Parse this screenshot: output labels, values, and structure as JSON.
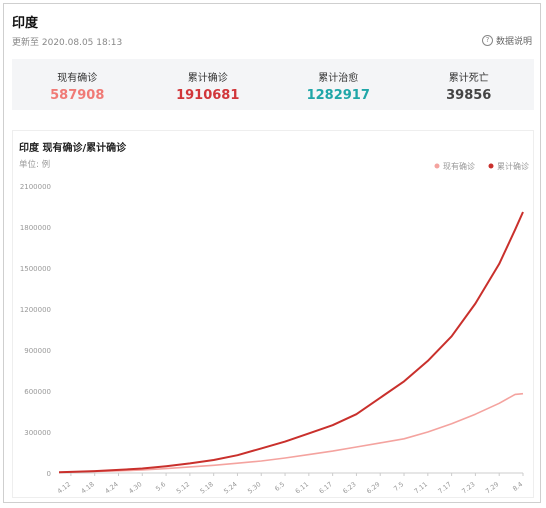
{
  "header": {
    "title": "印度",
    "updated": "更新至 2020.08.05 18:13",
    "help_label": "数据说明",
    "help_icon": "question-circle-icon"
  },
  "stats": [
    {
      "label": "现有确诊",
      "value": "587908",
      "color": "#f07a76"
    },
    {
      "label": "累计确诊",
      "value": "1910681",
      "color": "#d1363a"
    },
    {
      "label": "累计治愈",
      "value": "1282917",
      "color": "#1fa6a8"
    },
    {
      "label": "累计死亡",
      "value": "39856",
      "color": "#444444"
    }
  ],
  "chart_data": {
    "type": "line",
    "title": "印度 现有确诊/累计确诊",
    "unit_label": "单位: 例",
    "ylim": [
      0,
      2100000
    ],
    "yticks": [
      0,
      300000,
      600000,
      900000,
      1200000,
      1500000,
      1800000,
      2100000
    ],
    "ytick_labels": [
      "0",
      "300000",
      "600000",
      "900000",
      "1200000",
      "1500000",
      "1800000",
      "2100000"
    ],
    "x_tick_labels": [
      "4.12",
      "4.18",
      "4.24",
      "4.30",
      "5.6",
      "5.12",
      "5.18",
      "5.24",
      "5.30",
      "6.5",
      "6.11",
      "6.17",
      "6.23",
      "6.29",
      "7.5",
      "7.11",
      "7.17",
      "7.23",
      "7.29",
      "8.4"
    ],
    "x_range": [
      "4.9",
      "8.4"
    ],
    "legend_position": "top-right",
    "grid": false,
    "series": [
      {
        "name": "现有确诊",
        "color": "#f4a39f",
        "x": [
          "4.9",
          "4.12",
          "4.18",
          "4.24",
          "4.30",
          "5.6",
          "5.12",
          "5.18",
          "5.24",
          "5.30",
          "6.5",
          "6.11",
          "6.17",
          "6.23",
          "6.29",
          "7.5",
          "7.11",
          "7.17",
          "7.23",
          "7.29",
          "8.2",
          "8.4"
        ],
        "values": [
          5000,
          7500,
          11000,
          16000,
          22000,
          32000,
          45000,
          56000,
          72000,
          88000,
          110000,
          135000,
          160000,
          190000,
          220000,
          250000,
          300000,
          360000,
          430000,
          510000,
          575000,
          580000
        ]
      },
      {
        "name": "累计确诊",
        "color": "#c9302c",
        "x": [
          "4.9",
          "4.12",
          "4.18",
          "4.24",
          "4.30",
          "5.6",
          "5.12",
          "5.18",
          "5.24",
          "5.30",
          "6.5",
          "6.11",
          "6.17",
          "6.23",
          "6.29",
          "7.5",
          "7.11",
          "7.17",
          "7.23",
          "7.29",
          "8.2",
          "8.4"
        ],
        "values": [
          5900,
          8400,
          14000,
          23000,
          33000,
          50000,
          70000,
          95000,
          130000,
          180000,
          230000,
          290000,
          350000,
          430000,
          550000,
          670000,
          820000,
          1000000,
          1240000,
          1530000,
          1780000,
          1910000
        ]
      }
    ]
  }
}
